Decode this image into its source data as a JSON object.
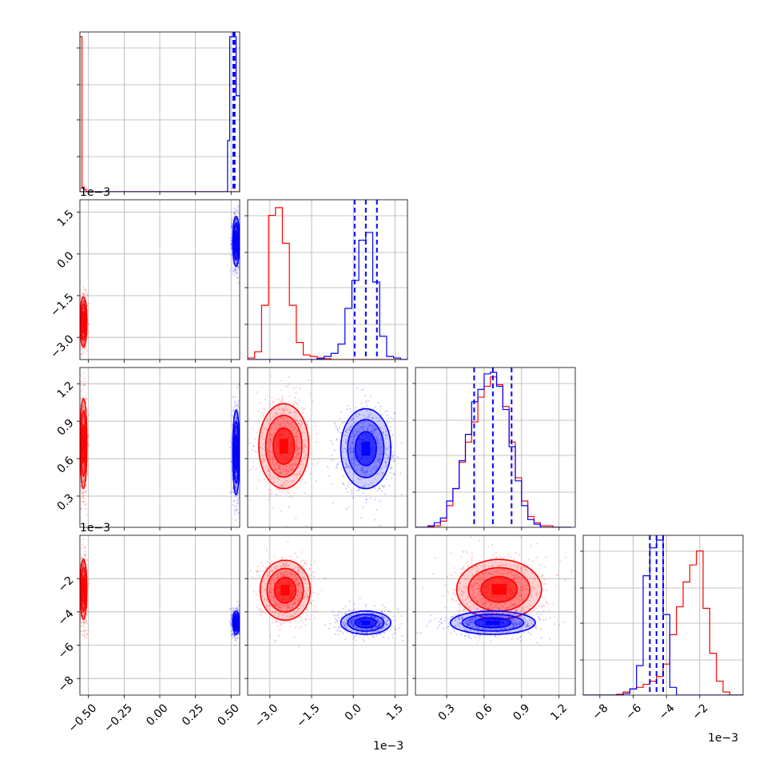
{
  "chart_data": {
    "type": "corner",
    "colors": {
      "red": "#ff0000",
      "blue": "#0000ff",
      "grid": "#b0b0b0"
    },
    "series": [
      {
        "color": "red"
      },
      {
        "color": "blue"
      }
    ],
    "parameters": [
      {
        "range": [
          -0.56,
          0.56
        ],
        "ticks": [
          -0.5,
          -0.25,
          0.0,
          0.25,
          0.5
        ],
        "tick_labels": [
          "−0.50",
          "−0.25",
          "0.00",
          "0.25",
          "0.50"
        ],
        "offset": ""
      },
      {
        "range": [
          -3.8,
          1.95
        ],
        "ticks": [
          -3.0,
          -1.5,
          0.0,
          1.5
        ],
        "tick_labels": [
          "−3.0",
          "−1.5",
          "0.0",
          "1.5"
        ],
        "offset": "1e−3"
      },
      {
        "range": [
          0.05,
          1.33
        ],
        "ticks": [
          0.3,
          0.6,
          0.9,
          1.2
        ],
        "tick_labels": [
          "0.3",
          "0.6",
          "0.9",
          "1.2"
        ],
        "offset": "1e−3"
      },
      {
        "range": [
          -9.0,
          0.6
        ],
        "ticks": [
          -8,
          -6,
          -4,
          -2
        ],
        "tick_labels": [
          "−8",
          "−6",
          "−4",
          "−2"
        ],
        "offset": "1e−3"
      }
    ],
    "marginals": [
      {
        "red": {
          "edges": [
            -0.56,
            -0.545,
            -0.53,
            -0.515,
            -0.5,
            0.5,
            0.515,
            0.53,
            0.545,
            0.56
          ],
          "counts": [
            1.0,
            0.03,
            0.015,
            0.0,
            0.0,
            0.0,
            0.0,
            0.0,
            0.0
          ]
        },
        "blue": {
          "edges": [
            -0.56,
            0.46,
            0.475,
            0.49,
            0.505,
            0.52,
            0.535,
            0.55,
            0.56
          ],
          "counts": [
            0.0,
            0.0,
            0.33,
            1.0,
            1.0,
            1.0,
            0.62,
            0.62
          ]
        },
        "quantiles": [
          0.515,
          0.52,
          0.525
        ]
      },
      {
        "red": {
          "edges": [
            -3.8,
            -3.55,
            -3.3,
            -3.05,
            -2.8,
            -2.55,
            -2.3,
            -2.05,
            -1.8,
            -1.55,
            -1.3,
            -1.05,
            -0.8,
            -0.55,
            -0.3,
            -0.05,
            0.2,
            0.45,
            0.7,
            0.95,
            1.2,
            1.45,
            1.7,
            1.95
          ],
          "counts": [
            0.01,
            0.05,
            0.35,
            0.93,
            0.98,
            0.75,
            0.35,
            0.11,
            0.03,
            0.02,
            0.01,
            0.005,
            0.0,
            0.0,
            0.0,
            0.0,
            0.0,
            0.0,
            0.0,
            0.0,
            0.0,
            0.0,
            0.0
          ]
        },
        "blue": {
          "edges": [
            -3.8,
            -1.3,
            -1.05,
            -0.8,
            -0.55,
            -0.3,
            -0.05,
            0.2,
            0.45,
            0.7,
            0.95,
            1.2,
            1.45,
            1.7,
            1.95
          ],
          "counts": [
            0.0,
            0.005,
            0.02,
            0.04,
            0.1,
            0.33,
            0.51,
            0.77,
            0.82,
            0.5,
            0.15,
            0.02,
            0.01,
            0.0
          ]
        },
        "quantiles": [
          0.05,
          0.45,
          0.85
        ]
      },
      {
        "red": {
          "edges": [
            0.05,
            0.1,
            0.15,
            0.2,
            0.25,
            0.3,
            0.35,
            0.4,
            0.45,
            0.5,
            0.55,
            0.6,
            0.65,
            0.7,
            0.75,
            0.8,
            0.85,
            0.9,
            0.95,
            1.0,
            1.05,
            1.1,
            1.15,
            1.2,
            1.25,
            1.3
          ],
          "counts": [
            0.0,
            0.0,
            0.005,
            0.01,
            0.04,
            0.14,
            0.25,
            0.42,
            0.55,
            0.68,
            0.84,
            0.91,
            0.97,
            0.92,
            0.78,
            0.55,
            0.32,
            0.17,
            0.07,
            0.03,
            0.01,
            0.01,
            0.0,
            0.0,
            0.0
          ]
        },
        "blue": {
          "edges": [
            0.05,
            0.1,
            0.15,
            0.2,
            0.25,
            0.3,
            0.35,
            0.4,
            0.45,
            0.5,
            0.55,
            0.6,
            0.65,
            0.7,
            0.75,
            0.8,
            0.85,
            0.9,
            0.95,
            1.0,
            1.05,
            1.1,
            1.15,
            1.2,
            1.25,
            1.3
          ],
          "counts": [
            0.0,
            0.0,
            0.01,
            0.03,
            0.06,
            0.17,
            0.25,
            0.43,
            0.6,
            0.81,
            0.89,
            0.99,
            1.0,
            0.91,
            0.76,
            0.52,
            0.3,
            0.14,
            0.05,
            0.02,
            0.0,
            0.0,
            0.0,
            0.0,
            0.0
          ]
        },
        "quantiles": [
          0.52,
          0.67,
          0.82
        ]
      },
      {
        "red": {
          "edges": [
            -9.0,
            -8.6,
            -8.2,
            -7.8,
            -7.4,
            -7.0,
            -6.6,
            -6.2,
            -5.8,
            -5.4,
            -5.0,
            -4.6,
            -4.2,
            -3.8,
            -3.4,
            -3.0,
            -2.6,
            -2.2,
            -1.8,
            -1.4,
            -1.0,
            -0.6,
            -0.2,
            0.2,
            0.6
          ],
          "counts": [
            0.0,
            0.0,
            0.0,
            0.0,
            0.0,
            0.005,
            0.02,
            0.04,
            0.05,
            0.07,
            0.09,
            0.12,
            0.2,
            0.39,
            0.57,
            0.73,
            0.84,
            0.93,
            0.56,
            0.27,
            0.09,
            0.02,
            0.0,
            0.0
          ]
        },
        "blue": {
          "edges": [
            -9.0,
            -6.6,
            -6.2,
            -5.8,
            -5.4,
            -5.0,
            -4.6,
            -4.2,
            -3.8,
            -3.4,
            0.6
          ],
          "counts": [
            0.0,
            0.01,
            0.04,
            0.19,
            0.77,
            0.95,
            1.0,
            0.52,
            0.05,
            0.0
          ]
        },
        "quantiles": [
          -5.0,
          -4.6,
          -4.2
        ]
      }
    ],
    "scatter": [
      {
        "row": 1,
        "col": 0,
        "red": {
          "x": -0.535,
          "y": -2.45,
          "sx": 0.012,
          "sy": 0.45
        },
        "blue": {
          "x": 0.535,
          "y": 0.45,
          "sx": 0.012,
          "sy": 0.45
        }
      },
      {
        "row": 2,
        "col": 0,
        "red": {
          "x": -0.535,
          "y": 0.72,
          "sx": 0.012,
          "sy": 0.18
        },
        "blue": {
          "x": 0.535,
          "y": 0.65,
          "sx": 0.012,
          "sy": 0.17
        }
      },
      {
        "row": 2,
        "col": 1,
        "red": {
          "x": -2.5,
          "y": 0.7,
          "sx": 0.45,
          "sy": 0.17
        },
        "blue": {
          "x": 0.45,
          "y": 0.68,
          "sx": 0.45,
          "sy": 0.16
        }
      },
      {
        "row": 3,
        "col": 0,
        "red": {
          "x": -0.535,
          "y": -2.65,
          "sx": 0.012,
          "sy": 0.9
        },
        "blue": {
          "x": 0.535,
          "y": -4.65,
          "sx": 0.012,
          "sy": 0.35
        }
      },
      {
        "row": 3,
        "col": 1,
        "red": {
          "x": -2.45,
          "y": -2.7,
          "sx": 0.45,
          "sy": 0.9
        },
        "blue": {
          "x": 0.45,
          "y": -4.65,
          "sx": 0.45,
          "sy": 0.35
        }
      },
      {
        "row": 3,
        "col": 2,
        "red": {
          "x": 0.72,
          "y": -2.65,
          "sx": 0.17,
          "sy": 0.9
        },
        "blue": {
          "x": 0.67,
          "y": -4.65,
          "sx": 0.17,
          "sy": 0.35
        }
      }
    ]
  }
}
